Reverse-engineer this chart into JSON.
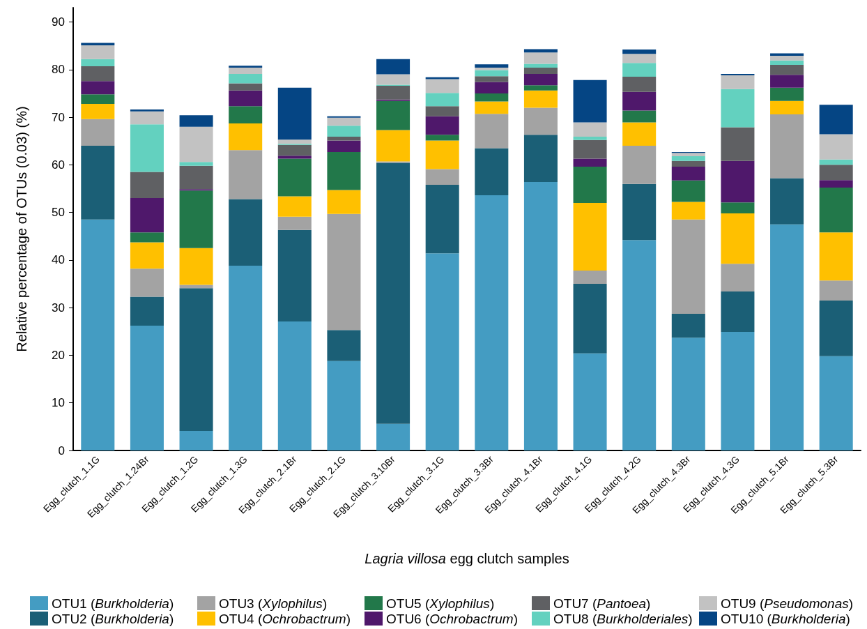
{
  "chart_data": {
    "type": "bar",
    "stacked": true,
    "xlabel": "Lagria villosa egg clutch samples",
    "ylabel": "Relative percentage of OTUs (0.03) (%)",
    "categories": [
      "Egg_clutch_1.1G",
      "Egg_clutch_1.24Br",
      "Egg_clutch_1.2G",
      "Egg_clutch_1.3G",
      "Egg_clutch_2.1Br",
      "Egg_clutch_2.1G",
      "Egg_clutch_3.10Br",
      "Egg_clutch_3.1G",
      "Egg_clutch_3.3Br",
      "Egg_clutch_4.1Br",
      "Egg_clutch_4.1G",
      "Egg_clutch_4.2G",
      "Egg_clutch_4.3Br",
      "Egg_clutch_4.3G",
      "Egg_clutch_5.1Br",
      "Egg_clutch_5.3Br"
    ],
    "ylim": [
      0,
      93
    ],
    "yticks": [
      0,
      10,
      20,
      30,
      40,
      50,
      60,
      70,
      80,
      90
    ],
    "grid": false,
    "legend": "bottom",
    "series": [
      {
        "name": "OTU1 (Burkholderia)",
        "color": "#449cc2",
        "values": [
          48.5,
          26.2,
          4.1,
          38.8,
          27.1,
          18.8,
          5.6,
          41.4,
          53.6,
          56.4,
          20.4,
          44.2,
          23.7,
          24.9,
          47.5,
          19.8
        ]
      },
      {
        "name": "OTU2 (Burkholderia)",
        "color": "#1b5f76",
        "values": [
          15.5,
          6.1,
          30.0,
          14.0,
          19.2,
          6.5,
          54.8,
          14.4,
          9.9,
          9.9,
          14.6,
          11.8,
          5.0,
          8.5,
          9.7,
          11.7
        ]
      },
      {
        "name": "OTU3 (Xylophilus)",
        "color": "#a3a3a3",
        "values": [
          5.6,
          5.9,
          0.7,
          10.3,
          2.8,
          24.4,
          0.3,
          3.3,
          7.2,
          5.7,
          2.8,
          8.0,
          19.8,
          5.8,
          13.4,
          4.2
        ]
      },
      {
        "name": "OTU4 (Ochrobactrum)",
        "color": "#ffc000",
        "values": [
          3.2,
          5.5,
          7.7,
          5.6,
          4.3,
          5.0,
          6.6,
          6.0,
          2.6,
          3.6,
          14.2,
          4.9,
          3.7,
          10.6,
          2.8,
          10.1
        ]
      },
      {
        "name": "OTU5 (Xylophilus)",
        "color": "#22784a",
        "values": [
          2.0,
          2.1,
          12.1,
          3.6,
          7.9,
          8.0,
          6.1,
          1.2,
          1.7,
          1.1,
          7.6,
          2.5,
          4.5,
          2.3,
          2.8,
          9.4
        ]
      },
      {
        "name": "OTU6 (Ochrobactrum)",
        "color": "#4f186b",
        "values": [
          2.8,
          7.2,
          0.3,
          3.3,
          0.6,
          2.4,
          0.3,
          3.9,
          2.4,
          2.4,
          1.7,
          3.9,
          2.9,
          8.7,
          2.7,
          1.6
        ]
      },
      {
        "name": "OTU7 (Pantoea)",
        "color": "#5f6063",
        "values": [
          3.1,
          5.5,
          4.9,
          1.5,
          2.3,
          0.8,
          2.9,
          2.1,
          1.2,
          1.3,
          3.9,
          3.2,
          1.2,
          7.1,
          2.1,
          3.2
        ]
      },
      {
        "name": "OTU8 (Burkholderiales)",
        "color": "#63d1bf",
        "values": [
          1.5,
          10.0,
          0.8,
          2.0,
          0.2,
          2.3,
          0.2,
          2.8,
          1.3,
          0.8,
          0.7,
          2.9,
          1.0,
          8.0,
          0.9,
          1.1
        ]
      },
      {
        "name": "OTU9 (Pseudomonas)",
        "color": "#c2c2c2",
        "values": [
          2.9,
          2.7,
          7.4,
          1.3,
          0.9,
          1.7,
          2.2,
          2.9,
          0.5,
          2.4,
          3.0,
          1.9,
          0.7,
          2.9,
          1.0,
          5.3
        ]
      },
      {
        "name": "OTU10 (Burkholderia)",
        "color": "#054584",
        "values": [
          0.5,
          0.4,
          2.4,
          0.4,
          10.9,
          0.3,
          3.2,
          0.4,
          0.7,
          0.7,
          8.9,
          0.9,
          0.2,
          0.3,
          0.5,
          6.2
        ]
      }
    ]
  }
}
